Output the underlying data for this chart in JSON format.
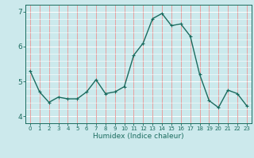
{
  "x": [
    0,
    1,
    2,
    3,
    4,
    5,
    6,
    7,
    8,
    9,
    10,
    11,
    12,
    13,
    14,
    15,
    16,
    17,
    18,
    19,
    20,
    21,
    22,
    23
  ],
  "y": [
    5.3,
    4.7,
    4.4,
    4.55,
    4.5,
    4.5,
    4.7,
    5.05,
    4.65,
    4.7,
    4.85,
    5.75,
    6.1,
    6.8,
    6.95,
    6.6,
    6.65,
    6.3,
    5.2,
    4.45,
    4.25,
    4.75,
    4.65,
    4.3
  ],
  "xlabel": "Humidex (Indice chaleur)",
  "ylim": [
    3.8,
    7.2
  ],
  "xlim": [
    -0.5,
    23.5
  ],
  "yticks": [
    4,
    5,
    6,
    7
  ],
  "xticks": [
    0,
    1,
    2,
    3,
    4,
    5,
    6,
    7,
    8,
    9,
    10,
    11,
    12,
    13,
    14,
    15,
    16,
    17,
    18,
    19,
    20,
    21,
    22,
    23
  ],
  "line_color": "#1a6b5e",
  "marker": "+",
  "bg_color": "#cce9ec",
  "hgrid_color": "#ffffff",
  "vgrid_color": "#e8a0a0",
  "tick_color": "#1a6b5e",
  "label_color": "#1a6b5e",
  "axis_color": "#1a6b5e",
  "marker_size": 3,
  "line_width": 1.0
}
